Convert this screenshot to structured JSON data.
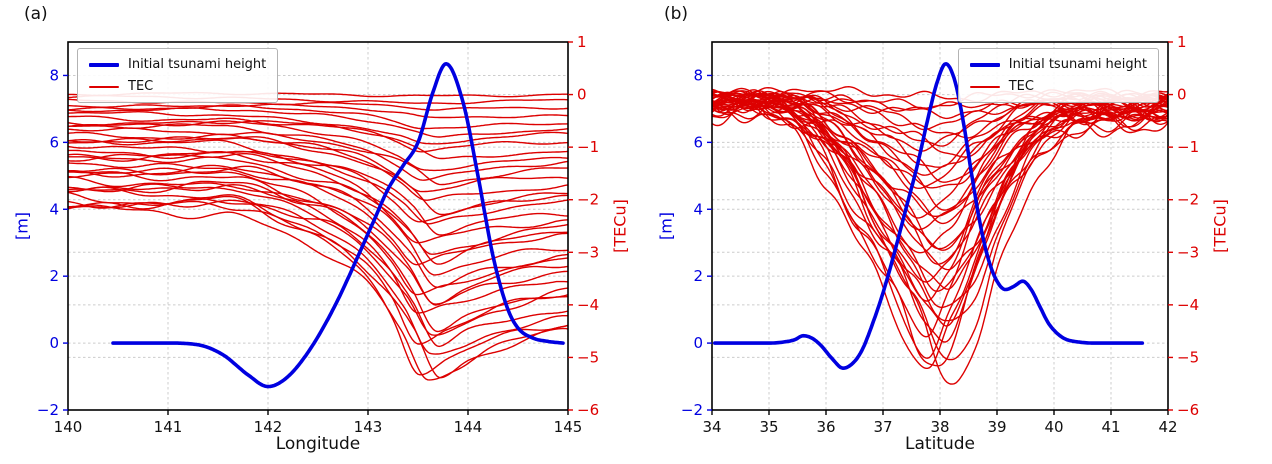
{
  "figure": {
    "background": "#ffffff",
    "colors": {
      "tsunami_blue": "#0000e0",
      "tec_red": "#dd0000",
      "grid_gray": "#cccccc",
      "axis_black": "#000000"
    }
  },
  "chart_data": [
    {
      "type": "line",
      "title": "(a)",
      "xlabel": "Longitude",
      "ylabel_left": "[m]",
      "ylabel_right": "[TECu]",
      "xlim": [
        140,
        145
      ],
      "xticks": [
        140,
        141,
        142,
        143,
        144,
        145
      ],
      "xtick_labels": [
        "140",
        "141",
        "142",
        "143",
        "144",
        "145"
      ],
      "ylim_left": [
        -2,
        9
      ],
      "yticks_left": [
        -2,
        0,
        2,
        4,
        6,
        8
      ],
      "ytick_labels_left": [
        "−2",
        "0",
        "2",
        "4",
        "6",
        "8"
      ],
      "ylim_right": [
        -6,
        1
      ],
      "yticks_right": [
        1,
        0,
        -1,
        -2,
        -3,
        -4,
        -5,
        -6
      ],
      "ytick_labels_right": [
        "1",
        "0",
        "−1",
        "−2",
        "−3",
        "−4",
        "−5",
        "−6"
      ],
      "grid": true,
      "legend_position": "upper left",
      "series": [
        {
          "name": "Initial tsunami height",
          "axis": "left",
          "color": "#0000e0",
          "linewidth": 3.6,
          "x": [
            140.45,
            141.0,
            141.3,
            141.55,
            141.8,
            142.0,
            142.2,
            142.45,
            142.7,
            142.9,
            143.05,
            143.2,
            143.35,
            143.5,
            143.65,
            143.78,
            143.95,
            144.1,
            144.25,
            144.4,
            144.5,
            144.65,
            144.8,
            144.95
          ],
          "y": [
            0,
            0,
            -0.05,
            -0.35,
            -0.95,
            -1.3,
            -1.0,
            -0.05,
            1.3,
            2.6,
            3.6,
            4.6,
            5.3,
            6.0,
            7.5,
            8.35,
            7.2,
            5.0,
            2.6,
            1.0,
            0.45,
            0.15,
            0.05,
            0
          ]
        },
        {
          "name": "TEC",
          "axis": "right",
          "color": "#dd0000",
          "linewidth": 1.4,
          "family": {
            "count": 36,
            "max_depth": 5.5,
            "depth_exponent": 1,
            "x_range": [
              140,
              145
            ],
            "shape_x": [
              140,
              140.8,
              141.6,
              142.2,
              142.7,
              143.05,
              143.35,
              143.62,
              143.9,
              144.2,
              144.6,
              145
            ],
            "shape_y": [
              -0.4,
              -0.41,
              -0.4,
              -0.47,
              -0.55,
              -0.66,
              -0.82,
              -1.0,
              -0.95,
              -0.9,
              -0.86,
              -0.83
            ],
            "x_shift": 0.12,
            "wiggle": {
              "amp1": 0.06,
              "freq1": 4.6,
              "amp2": 0.035,
              "freq2": 9.3,
              "amp3": 0.1,
              "freq3": 1.3,
              "phase_step": 2.399,
              "scale_min": 0.25
            }
          }
        }
      ]
    },
    {
      "type": "line",
      "title": "(b)",
      "xlabel": "Latitude",
      "ylabel_left": "[m]",
      "ylabel_right": "[TECu]",
      "xlim": [
        34,
        42
      ],
      "xticks": [
        34,
        35,
        36,
        37,
        38,
        39,
        40,
        41,
        42
      ],
      "xtick_labels": [
        "34",
        "35",
        "36",
        "37",
        "38",
        "39",
        "40",
        "41",
        "42"
      ],
      "ylim_left": [
        -2,
        9
      ],
      "yticks_left": [
        -2,
        0,
        2,
        4,
        6,
        8
      ],
      "ytick_labels_left": [
        "−2",
        "0",
        "2",
        "4",
        "6",
        "8"
      ],
      "ylim_right": [
        -6,
        1
      ],
      "yticks_right": [
        1,
        0,
        -1,
        -2,
        -3,
        -4,
        -5,
        -6
      ],
      "ytick_labels_right": [
        "1",
        "0",
        "−1",
        "−2",
        "−3",
        "−4",
        "−5",
        "−6"
      ],
      "grid": true,
      "legend_position": "upper right",
      "series": [
        {
          "name": "Initial tsunami height",
          "axis": "left",
          "color": "#0000e0",
          "linewidth": 3.6,
          "x": [
            34.05,
            35.0,
            35.2,
            35.45,
            35.6,
            35.75,
            35.9,
            36.1,
            36.3,
            36.5,
            36.65,
            36.8,
            37.0,
            37.2,
            37.4,
            37.6,
            37.8,
            37.95,
            38.1,
            38.25,
            38.4,
            38.55,
            38.7,
            38.85,
            39.0,
            39.15,
            39.3,
            39.45,
            39.6,
            39.75,
            39.9,
            40.05,
            40.2,
            40.4,
            40.7,
            41.1,
            41.55
          ],
          "y": [
            0,
            0,
            0.02,
            0.1,
            0.22,
            0.15,
            -0.05,
            -0.45,
            -0.75,
            -0.55,
            -0.15,
            0.5,
            1.5,
            2.7,
            4.0,
            5.3,
            6.8,
            7.8,
            8.35,
            7.9,
            6.7,
            5.1,
            3.6,
            2.5,
            1.85,
            1.6,
            1.7,
            1.85,
            1.6,
            1.1,
            0.6,
            0.3,
            0.12,
            0.04,
            0,
            0,
            0
          ]
        },
        {
          "name": "TEC",
          "axis": "right",
          "color": "#dd0000",
          "linewidth": 1.4,
          "family": {
            "count": 38,
            "max_depth": 5.4,
            "depth_exponent": 1,
            "x_range": [
              34,
              42
            ],
            "shape_x": [
              34,
              34.8,
              35.5,
              36.2,
              36.8,
              37.3,
              37.7,
              38.0,
              38.4,
              38.8,
              39.2,
              39.7,
              40.2,
              40.8,
              41.4,
              42
            ],
            "shape_y": [
              -0.06,
              -0.05,
              -0.1,
              -0.3,
              -0.55,
              -0.75,
              -0.95,
              -1.0,
              -0.85,
              -0.6,
              -0.38,
              -0.2,
              -0.12,
              -0.1,
              -0.1,
              -0.08
            ],
            "x_shift": 0.25,
            "wiggle": {
              "amp1": 0.13,
              "freq1": 4.2,
              "amp2": 0.07,
              "freq2": 9.7,
              "amp3": 0.12,
              "freq3": 1.6,
              "phase_step": 2.399,
              "scale_min": 0.5
            }
          }
        }
      ]
    }
  ]
}
